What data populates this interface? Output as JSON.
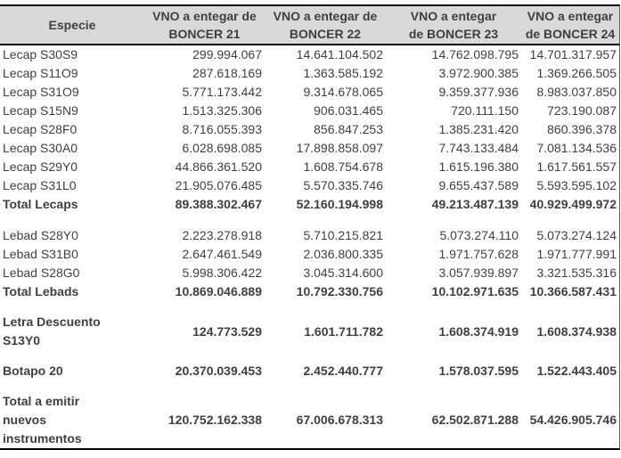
{
  "chart_data": {
    "type": "table",
    "header": {
      "columns": [
        {
          "label": "Especie",
          "line1": "Especie",
          "line2": ""
        },
        {
          "label": "VNO a entegar de BONCER 21",
          "line1": "VNO a entegar de",
          "line2": "BONCER 21"
        },
        {
          "label": "VNO a entegar de BONCER 22",
          "line1": "VNO a entegar de",
          "line2": "BONCER 22"
        },
        {
          "label": "VNO a entegar de BONCER 23",
          "line1": "VNO a entegar",
          "line2": "de BONCER 23"
        },
        {
          "label": "VNO a entegar de BONCER 24",
          "line1": "VNO a entegar",
          "line2": "de BONCER 24"
        }
      ]
    },
    "rows": [
      {
        "kind": "data",
        "bold": false,
        "label_lines": [
          "Lecap S30S9"
        ],
        "values": [
          "299.994.067",
          "14.641.104.502",
          "14.762.098.795",
          "14.701.317.957"
        ]
      },
      {
        "kind": "data",
        "bold": false,
        "label_lines": [
          "Lecap S11O9"
        ],
        "values": [
          "287.618.169",
          "1.363.585.192",
          "3.972.900.385",
          "1.369.266.505"
        ]
      },
      {
        "kind": "data",
        "bold": false,
        "label_lines": [
          "Lecap S31O9"
        ],
        "values": [
          "5.771.173.442",
          "9.314.678.065",
          "9.359.377.936",
          "8.983.037.850"
        ]
      },
      {
        "kind": "data",
        "bold": false,
        "label_lines": [
          "Lecap S15N9"
        ],
        "values": [
          "1.513.325.306",
          "906.031.465",
          "720.111.150",
          "723.190.087"
        ]
      },
      {
        "kind": "data",
        "bold": false,
        "label_lines": [
          "Lecap S28F0"
        ],
        "values": [
          "8.716.055.393",
          "856.847.253",
          "1.385.231.420",
          "860.396.378"
        ]
      },
      {
        "kind": "data",
        "bold": false,
        "label_lines": [
          "Lecap S30A0"
        ],
        "values": [
          "6.028.698.085",
          "17.898.858.097",
          "7.743.133.484",
          "7.081.134.536"
        ]
      },
      {
        "kind": "data",
        "bold": false,
        "label_lines": [
          "Lecap S29Y0"
        ],
        "values": [
          "44.866.361.520",
          "1.608.754.678",
          "1.615.196.380",
          "1.617.561.557"
        ]
      },
      {
        "kind": "data",
        "bold": false,
        "label_lines": [
          "Lecap S31L0"
        ],
        "values": [
          "21.905.076.485",
          "5.570.335.746",
          "9.655.437.589",
          "5.593.595.102"
        ]
      },
      {
        "kind": "data",
        "bold": true,
        "label_lines": [
          "Total Lecaps"
        ],
        "values": [
          "89.388.302.467",
          "52.160.194.998",
          "49.213.487.139",
          "40.929.499.972"
        ]
      },
      {
        "kind": "spacer"
      },
      {
        "kind": "data",
        "bold": false,
        "label_lines": [
          "Lebad S28Y0"
        ],
        "values": [
          "2.223.278.918",
          "5.710.215.821",
          "5.073.274.110",
          "5.073.274.124"
        ]
      },
      {
        "kind": "data",
        "bold": false,
        "label_lines": [
          "Lebad S31B0"
        ],
        "values": [
          "2.647.461.549",
          "2.036.800.335",
          "1.971.757.628",
          "1.971.777.991"
        ]
      },
      {
        "kind": "data",
        "bold": false,
        "label_lines": [
          "Lebad S28G0"
        ],
        "values": [
          "5.998.306.422",
          "3.045.314.600",
          "3.057.939.897",
          "3.321.535.316"
        ]
      },
      {
        "kind": "data",
        "bold": true,
        "label_lines": [
          "Total Lebads"
        ],
        "values": [
          "10.869.046.889",
          "10.792.330.756",
          "10.102.971.635",
          "10.366.587.431"
        ]
      },
      {
        "kind": "spacer"
      },
      {
        "kind": "data",
        "bold": true,
        "label_lines": [
          "Letra Descuento",
          "S13Y0"
        ],
        "values": [
          "124.773.529",
          "1.601.711.782",
          "1.608.374.919",
          "1.608.374.938"
        ]
      },
      {
        "kind": "spacer"
      },
      {
        "kind": "data",
        "bold": true,
        "label_lines": [
          "Botapo 20"
        ],
        "values": [
          "20.370.039.453",
          "2.452.440.777",
          "1.578.037.595",
          "1.522.443.405"
        ]
      },
      {
        "kind": "spacer"
      },
      {
        "kind": "data",
        "bold": true,
        "label_lines": [
          "Total a emitir",
          "nuevos",
          "instrumentos"
        ],
        "values": [
          "120.752.162.338",
          "67.006.678.313",
          "62.502.871.288",
          "54.426.905.746"
        ]
      }
    ],
    "styles": {
      "header_bg": "#d9d9d9",
      "border_color": "#000000",
      "text_color": "#3f3f3f",
      "right_rule_color": "#595959"
    },
    "layout_hints": {
      "grid": "off",
      "number_alignment": "right",
      "thousands_separator": "."
    }
  }
}
